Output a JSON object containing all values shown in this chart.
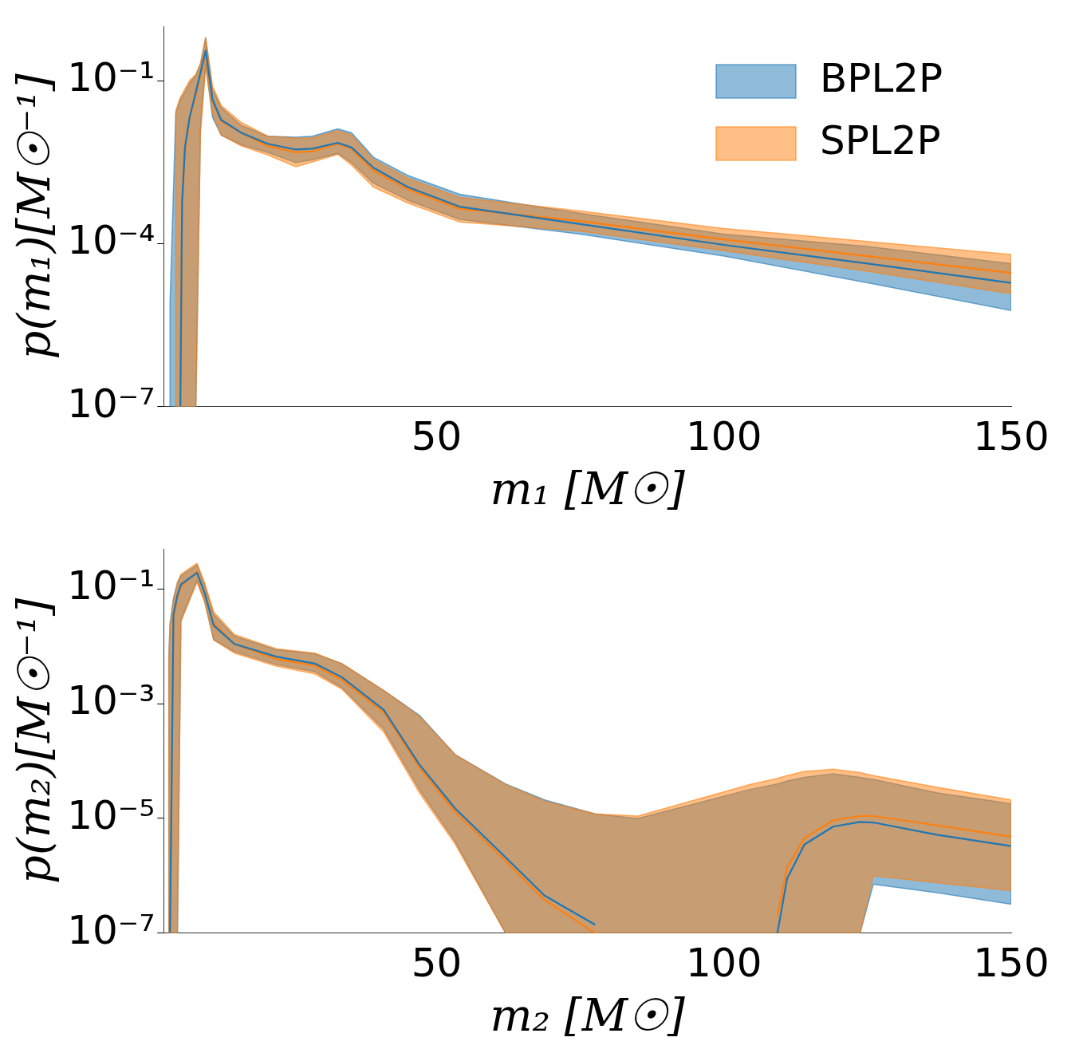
{
  "chart_data": [
    {
      "type": "line",
      "xlabel": "m₁ [M☉]",
      "ylabel": "p(m₁)[M☉⁻¹]",
      "log": "y",
      "legend": "top right",
      "xlim": [
        2.5,
        150
      ],
      "xticks": [
        50,
        100,
        150
      ],
      "ylim": [
        1e-07,
        1
      ],
      "yticks": [
        {
          "value": 0.1,
          "label": "10⁻¹"
        },
        {
          "value": 0.0001,
          "label": "10⁻⁴"
        },
        {
          "value": 1e-07,
          "label": "10⁻⁷"
        }
      ],
      "x": [
        3.6,
        4.6,
        5.4,
        5.7,
        6.2,
        7.0,
        8.1,
        8.9,
        9.8,
        11,
        12.5,
        16,
        20.6,
        25.5,
        28.4,
        32.8,
        35.2,
        39,
        45,
        54,
        75,
        100,
        125,
        150
      ],
      "series": [
        {
          "name": "BPL2P",
          "color": "#1f77b4",
          "values": [
            null,
            null,
            1e-07,
            0.00056,
            0.0059,
            0.021,
            0.062,
            0.14,
            0.36,
            0.045,
            0.019,
            0.011,
            0.0069,
            0.0054,
            0.0056,
            0.0072,
            0.0059,
            0.0025,
            0.0011,
            0.00048,
            0.00023,
            9.5e-05,
            4.3e-05,
            1.9e-05
          ],
          "upper": [
            7.9e-06,
            0.025,
            0.045,
            0.05,
            0.062,
            0.089,
            0.126,
            0.2,
            0.62,
            0.069,
            0.032,
            0.015,
            0.0095,
            0.0091,
            0.0095,
            0.013,
            0.011,
            0.0039,
            0.0018,
            0.00081,
            0.00036,
            0.00015,
            8.9e-05,
            4.3e-05
          ],
          "lower": [
            1e-07,
            1e-07,
            1e-07,
            1e-07,
            1e-07,
            1e-07,
            1e-07,
            0.014,
            0.2,
            0.021,
            0.01,
            0.0066,
            0.0048,
            0.0031,
            0.0035,
            0.0046,
            0.0031,
            0.0013,
            0.00063,
            0.00028,
            0.00015,
            5.9e-05,
            1.9e-05,
            5.9e-06
          ]
        },
        {
          "name": "SPL2P",
          "color": "#ff7f0e",
          "values": [
            null,
            null,
            1e-07,
            0.0005,
            0.005,
            0.02,
            0.056,
            0.13,
            0.32,
            0.042,
            0.018,
            0.011,
            0.0063,
            0.0048,
            0.005,
            0.0069,
            0.0056,
            0.0022,
            0.001,
            0.00044,
            0.00026,
            0.00012,
            5.9e-05,
            2.9e-05
          ],
          "upper": [
            null,
            0.028,
            0.05,
            0.056,
            0.071,
            0.1,
            0.13,
            0.21,
            0.62,
            0.079,
            0.035,
            0.017,
            0.0095,
            0.0087,
            0.0089,
            0.012,
            0.01,
            0.0035,
            0.0016,
            0.00071,
            0.0004,
            0.00019,
            0.00011,
            6.3e-05
          ],
          "lower": [
            null,
            1e-07,
            1e-07,
            1e-07,
            1e-07,
            1e-07,
            1e-07,
            0.01,
            0.18,
            0.025,
            0.01,
            0.0063,
            0.0043,
            0.0026,
            0.0032,
            0.0044,
            0.0028,
            0.0011,
            0.00056,
            0.00025,
            0.00017,
            7.4e-05,
            3.1e-05,
            1.2e-05
          ]
        }
      ]
    },
    {
      "type": "line",
      "xlabel": "m₂ [M☉]",
      "ylabel": "p(m₂)[M☉⁻¹]",
      "log": "y",
      "xlim": [
        2.5,
        150
      ],
      "xticks": [
        50,
        100,
        150
      ],
      "ylim": [
        1e-07,
        0.5
      ],
      "yticks": [
        {
          "value": 0.1,
          "label": "10⁻¹"
        },
        {
          "value": 0.001,
          "label": "10⁻³"
        },
        {
          "value": 1e-05,
          "label": "10⁻⁵"
        },
        {
          "value": 1e-07,
          "label": "10⁻⁷"
        }
      ],
      "x": [
        3.4,
        3.6,
        4.2,
        4.9,
        5.5,
        8.3,
        9.6,
        11.2,
        14.8,
        22.1,
        28.8,
        33.5,
        40.8,
        47,
        53.2,
        62,
        68.8,
        77.6,
        85,
        95,
        104.5,
        109.3,
        111,
        114,
        119,
        123.7,
        126,
        137,
        150
      ],
      "series": [
        {
          "color": "#1f77b4",
          "values": [
            null,
            1e-07,
            0.036,
            0.079,
            0.12,
            0.19,
            0.087,
            0.023,
            0.011,
            0.0066,
            0.005,
            0.0029,
            0.00078,
            8.7e-05,
            1.5e-05,
            2.1e-06,
            4.5e-07,
            1.4e-07,
            null,
            null,
            null,
            1e-07,
            8.9e-07,
            3.5e-06,
            7.2e-06,
            8.7e-06,
            8.5e-06,
            5.2e-06,
            3.3e-06
          ],
          "upper": [
            0.0069,
            0.025,
            0.069,
            0.13,
            0.17,
            0.26,
            0.12,
            0.036,
            0.015,
            0.0087,
            0.0074,
            0.005,
            0.0017,
            0.00063,
            0.00013,
            4e-05,
            2.1e-05,
            1.2e-05,
            1e-05,
            1.8e-05,
            3.2e-05,
            4e-05,
            4.5e-05,
            5.2e-05,
            6e-05,
            5.2e-05,
            4.8e-05,
            2.8e-05,
            1.8e-05
          ],
          "lower": [
            1e-07,
            1e-07,
            1e-07,
            1e-07,
            0.029,
            0.14,
            0.063,
            0.013,
            0.0081,
            0.0048,
            0.0036,
            0.0019,
            0.00036,
            3.2e-05,
            4e-06,
            1e-07,
            1e-07,
            1e-07,
            1e-07,
            1e-07,
            1e-07,
            1e-07,
            1e-07,
            1e-07,
            1e-07,
            1e-07,
            7.1e-07,
            5.1e-07,
            3.2e-07
          ]
        },
        {
          "color": "#ff7f0e",
          "values": [
            null,
            1e-07,
            0.032,
            0.071,
            0.11,
            0.2,
            0.089,
            0.025,
            0.011,
            0.006,
            0.0046,
            0.0026,
            0.00071,
            7.8e-05,
            1.3e-05,
            1.8e-06,
            3.8e-07,
            1e-07,
            null,
            null,
            null,
            2e-07,
            1.4e-06,
            4.5e-06,
            9.3e-06,
            1.1e-05,
            1.1e-05,
            7.6e-06,
            4.8e-06
          ],
          "upper": [
            0.0063,
            0.022,
            0.063,
            0.13,
            0.18,
            0.28,
            0.13,
            0.04,
            0.016,
            0.0091,
            0.0076,
            0.005,
            0.0017,
            0.0006,
            0.00013,
            3.9e-05,
            2e-05,
            1.2e-05,
            1.1e-05,
            2.1e-05,
            3.9e-05,
            5e-05,
            5.6e-05,
            6.6e-05,
            7.2e-05,
            6.3e-05,
            5.6e-05,
            3.5e-05,
            2.1e-05
          ],
          "lower": [
            1e-07,
            1e-07,
            1e-07,
            1e-07,
            0.027,
            0.13,
            0.06,
            0.013,
            0.0076,
            0.0045,
            0.0033,
            0.0018,
            0.00032,
            2.8e-05,
            3.6e-06,
            1e-07,
            1e-07,
            1e-07,
            1e-07,
            1e-07,
            1e-07,
            1e-07,
            1e-07,
            1e-07,
            1e-07,
            1e-07,
            1e-06,
            7.6e-07,
            5.5e-07
          ]
        }
      ]
    }
  ]
}
